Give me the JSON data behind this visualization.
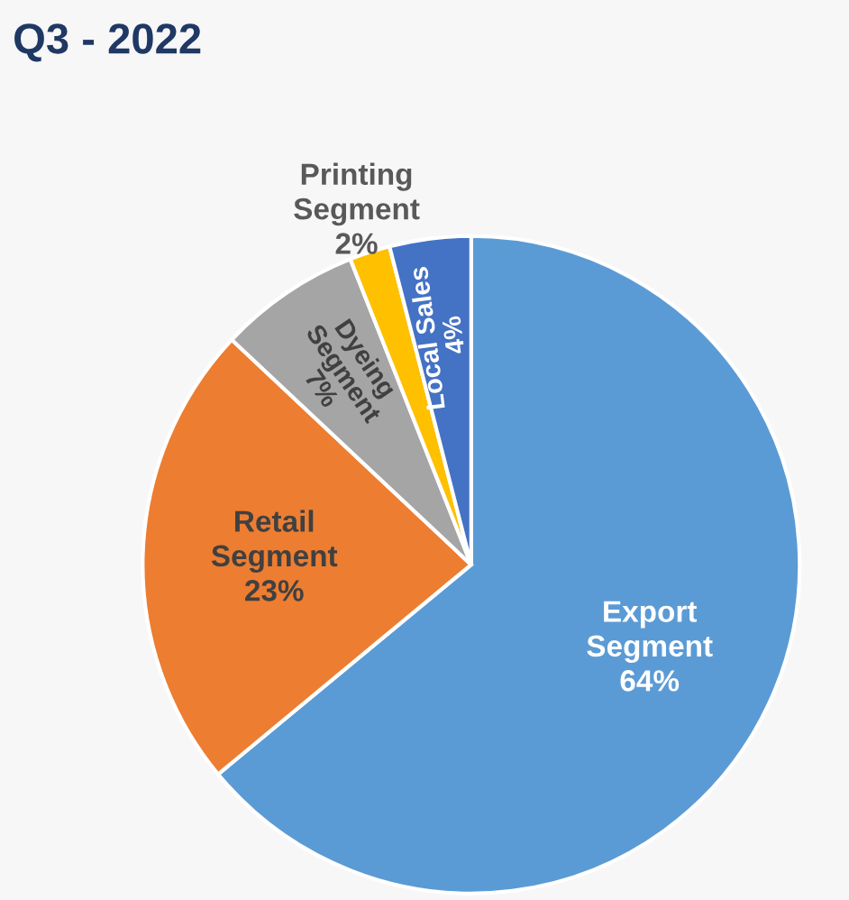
{
  "chart_data": {
    "type": "pie",
    "title": "Q3 - 2022",
    "categories": [
      "Export\nSegment",
      "Retail\nSegment",
      "Dyeing\nSegment",
      "Printing\nSegment",
      "Local Sales"
    ],
    "values": [
      64,
      23,
      7,
      2,
      4
    ],
    "value_labels": [
      "64%",
      "23%",
      "7%",
      "2%",
      "4%"
    ],
    "colors": [
      "#5b9bd5",
      "#ed7d31",
      "#a5a5a5",
      "#ffc000",
      "#4472c4"
    ]
  }
}
